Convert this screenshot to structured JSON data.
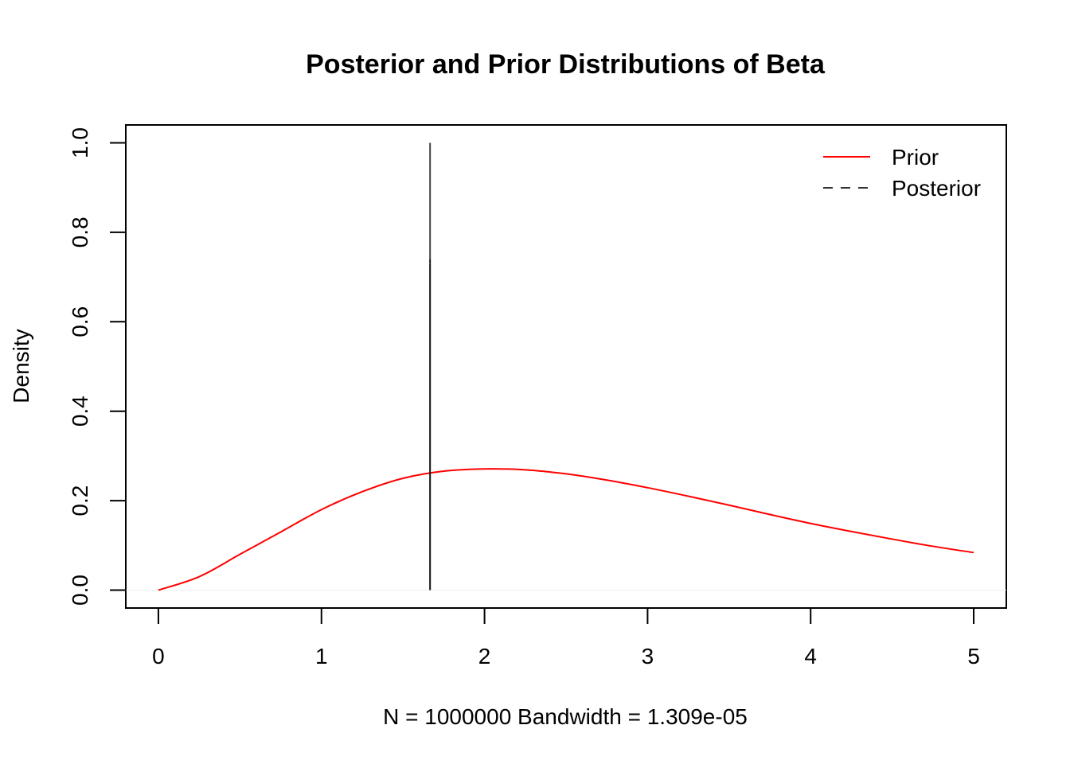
{
  "chart_data": {
    "type": "line",
    "title": "Posterior and Prior Distributions of Beta",
    "xlabel": "N = 1000000   Bandwidth = 1.309e-05",
    "ylabel": "Density",
    "xlim": [
      -0.2,
      5.2
    ],
    "ylim": [
      -0.04,
      1.04
    ],
    "x_ticks": [
      0,
      1,
      2,
      3,
      4,
      5
    ],
    "x_tick_labels": [
      "0",
      "1",
      "2",
      "3",
      "4",
      "5"
    ],
    "y_ticks": [
      0.0,
      0.2,
      0.4,
      0.6,
      0.8,
      1.0
    ],
    "y_tick_labels": [
      "0.0",
      "0.2",
      "0.4",
      "0.6",
      "0.8",
      "1.0"
    ],
    "grid": false,
    "legend_position": "top-right",
    "series": [
      {
        "name": "Prior",
        "color": "#ff0000",
        "line_style": "solid",
        "x": [
          0,
          0.25,
          0.5,
          0.75,
          1,
          1.25,
          1.5,
          1.75,
          2,
          2.25,
          2.5,
          2.75,
          3,
          3.25,
          3.5,
          3.75,
          4,
          4.25,
          4.5,
          4.75,
          5
        ],
        "y": [
          0,
          0.03,
          0.08,
          0.13,
          0.18,
          0.22,
          0.25,
          0.266,
          0.271,
          0.269,
          0.26,
          0.246,
          0.229,
          0.21,
          0.19,
          0.169,
          0.149,
          0.131,
          0.114,
          0.098,
          0.084
        ]
      },
      {
        "name": "Posterior",
        "color": "#333333",
        "line_style": "dashed",
        "x": [
          1.666,
          1.666,
          1.666,
          1.666
        ],
        "y": [
          0,
          0.73,
          0.74,
          1.0
        ]
      }
    ]
  }
}
